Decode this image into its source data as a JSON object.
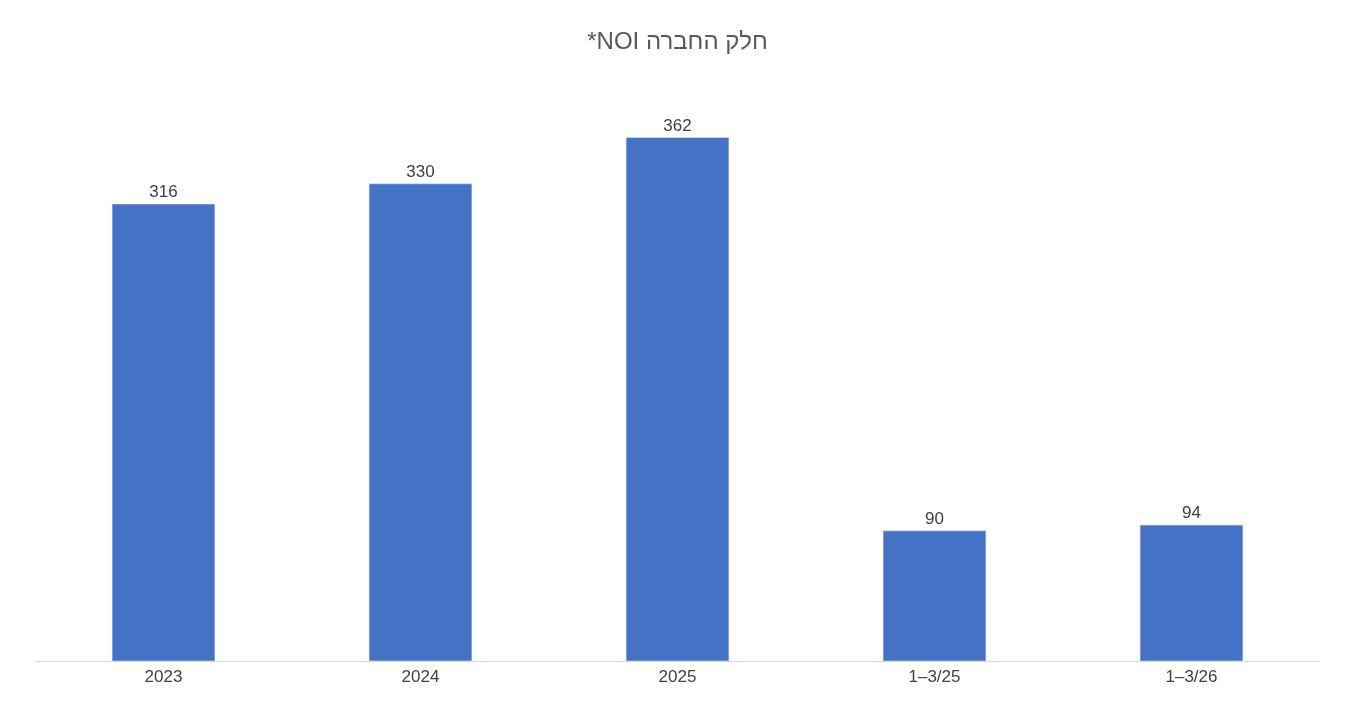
{
  "chart_data": {
    "type": "bar",
    "title": "חלק החברה NOI*",
    "categories": [
      "2023",
      "2024",
      "2025",
      "1–3/25",
      "1–3/26"
    ],
    "values": [
      316,
      330,
      362,
      90,
      94
    ],
    "color": "#4472c4",
    "data_labels": true
  }
}
